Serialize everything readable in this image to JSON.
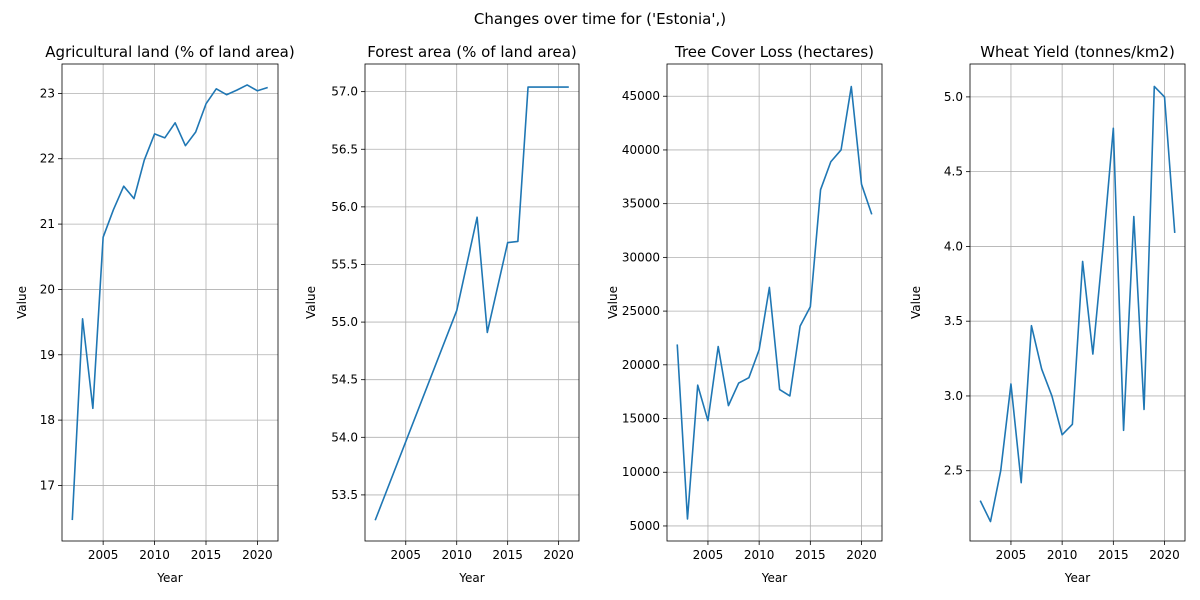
{
  "figure": {
    "suptitle": "Changes over time for ('Estonia',)",
    "line_color": "#1f77b4",
    "grid_color": "#b0b0b0"
  },
  "chart_data": [
    {
      "type": "line",
      "title": "Agricultural land (% of land area)",
      "xlabel": "Year",
      "ylabel": "Value",
      "grid": true,
      "xlim": [
        2001,
        2022
      ],
      "ylim": [
        16.15,
        23.45
      ],
      "xticks": [
        2005,
        2010,
        2015,
        2020
      ],
      "yticks": [
        17,
        18,
        19,
        20,
        21,
        22,
        23
      ],
      "ytick_labels": [
        "17",
        "18",
        "19",
        "20",
        "21",
        "22",
        "23"
      ],
      "series": [
        {
          "x": [
            2002,
            2003,
            2004,
            2005,
            2006,
            2007,
            2008,
            2009,
            2010,
            2011,
            2012,
            2013,
            2014,
            2015,
            2016,
            2017,
            2018,
            2019,
            2020,
            2021
          ],
          "values": [
            16.47,
            19.55,
            18.18,
            20.8,
            21.22,
            21.58,
            21.39,
            21.98,
            22.38,
            22.32,
            22.55,
            22.2,
            22.41,
            22.84,
            23.07,
            22.98,
            23.05,
            23.13,
            23.04,
            23.09
          ]
        }
      ]
    },
    {
      "type": "line",
      "title": "Forest area (% of land area)",
      "xlabel": "Year",
      "ylabel": "Value",
      "grid": true,
      "xlim": [
        2001,
        2022
      ],
      "ylim": [
        53.1,
        57.24
      ],
      "xticks": [
        2005,
        2010,
        2015,
        2020
      ],
      "yticks": [
        53.5,
        54.0,
        54.5,
        55.0,
        55.5,
        56.0,
        56.5,
        57.0
      ],
      "ytick_labels": [
        "53.5",
        "54.0",
        "54.5",
        "55.0",
        "55.5",
        "56.0",
        "56.5",
        "57.0"
      ],
      "series": [
        {
          "x": [
            2002,
            2010,
            2012,
            2013,
            2015,
            2016,
            2017,
            2018,
            2019,
            2020,
            2021
          ],
          "values": [
            53.28,
            55.1,
            55.91,
            54.91,
            55.69,
            55.7,
            57.04,
            57.04,
            57.04,
            57.04,
            57.04
          ]
        }
      ]
    },
    {
      "type": "line",
      "title": "Tree Cover Loss (hectares)",
      "xlabel": "Year",
      "ylabel": "Value",
      "grid": true,
      "xlim": [
        2001,
        2022
      ],
      "ylim": [
        3600,
        48000
      ],
      "xticks": [
        2005,
        2010,
        2015,
        2020
      ],
      "yticks": [
        5000,
        10000,
        15000,
        20000,
        25000,
        30000,
        35000,
        40000,
        45000
      ],
      "ytick_labels": [
        "5000",
        "10000",
        "15000",
        "20000",
        "25000",
        "30000",
        "35000",
        "40000",
        "45000"
      ],
      "series": [
        {
          "x": [
            2002,
            2003,
            2004,
            2005,
            2006,
            2007,
            2008,
            2009,
            2010,
            2011,
            2012,
            2013,
            2014,
            2015,
            2016,
            2017,
            2018,
            2019,
            2020,
            2021
          ],
          "values": [
            21900,
            5650,
            18100,
            14800,
            21700,
            16200,
            18300,
            18800,
            21400,
            27200,
            17700,
            17100,
            23600,
            25400,
            36300,
            38900,
            40000,
            45900,
            36800,
            34000
          ]
        }
      ]
    },
    {
      "type": "line",
      "title": "Wheat Yield (tonnes/km2)",
      "xlabel": "Year",
      "ylabel": "Value",
      "grid": true,
      "xlim": [
        2001,
        2022
      ],
      "ylim": [
        2.03,
        5.22
      ],
      "xticks": [
        2005,
        2010,
        2015,
        2020
      ],
      "yticks": [
        2.5,
        3.0,
        3.5,
        4.0,
        4.5,
        5.0
      ],
      "ytick_labels": [
        "2.5",
        "3.0",
        "3.5",
        "4.0",
        "4.5",
        "5.0"
      ],
      "series": [
        {
          "x": [
            2002,
            2003,
            2004,
            2005,
            2006,
            2007,
            2008,
            2009,
            2010,
            2011,
            2012,
            2013,
            2014,
            2015,
            2016,
            2017,
            2018,
            2019,
            2020,
            2021
          ],
          "values": [
            2.3,
            2.16,
            2.5,
            3.08,
            2.42,
            3.47,
            3.18,
            3.0,
            2.74,
            2.81,
            3.9,
            3.28,
            4.0,
            4.79,
            2.77,
            4.2,
            2.91,
            5.07,
            5.0,
            4.09
          ]
        }
      ]
    }
  ]
}
